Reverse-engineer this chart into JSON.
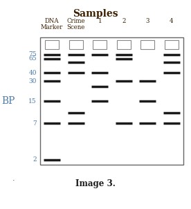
{
  "title": "Samples",
  "image_label": "Image 3.",
  "bp_label": "BP",
  "col_labels_line1": [
    "DNA",
    "Crime",
    "1",
    "2",
    "3",
    "4"
  ],
  "col_labels_line2": [
    "Marker",
    "Scene",
    "",
    "",
    "",
    ""
  ],
  "bp_ticks": [
    75,
    65,
    40,
    30,
    15,
    7,
    2
  ],
  "title_color": "#3b1f00",
  "axis_label_color": "#4a7aaa",
  "tick_label_color": "#4a7aaa",
  "col_label_color": "#3b1f00",
  "band_color": "#1a1a1a",
  "box_edgecolor": "#888888",
  "background": "#ffffff",
  "bands": {
    "DNA Marker": [
      75,
      65,
      40,
      30,
      15,
      7,
      2
    ],
    "Crime Scene": [
      75,
      57,
      40,
      10,
      7
    ],
    "1": [
      75,
      40,
      25,
      15
    ],
    "2": [
      75,
      65,
      30,
      7
    ],
    "3": [
      30,
      15,
      7
    ],
    "4": [
      75,
      57,
      40,
      10,
      7
    ]
  },
  "figsize": [
    2.76,
    3.02
  ],
  "dpi": 100
}
